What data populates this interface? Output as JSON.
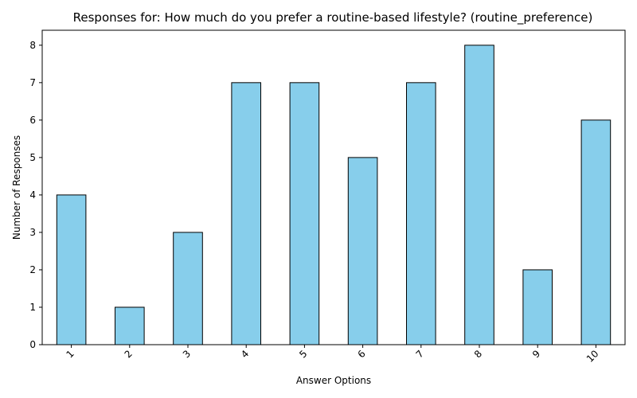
{
  "chart_data": {
    "type": "bar",
    "title": "Responses for: How much do you prefer a routine-based lifestyle? (routine_preference)",
    "xlabel": "Answer Options",
    "ylabel": "Number of Responses",
    "categories": [
      "1",
      "2",
      "3",
      "4",
      "5",
      "6",
      "7",
      "8",
      "9",
      "10"
    ],
    "values": [
      4,
      1,
      3,
      7,
      7,
      5,
      7,
      8,
      2,
      6
    ],
    "ylim": [
      0,
      8.4
    ],
    "yticks": [
      "0",
      "1",
      "2",
      "3",
      "4",
      "5",
      "6",
      "7",
      "8"
    ],
    "bar_color": "#87CEEB",
    "edge_color": "#000000",
    "grid": false,
    "legend": "none",
    "x_tick_rotation": 45
  }
}
